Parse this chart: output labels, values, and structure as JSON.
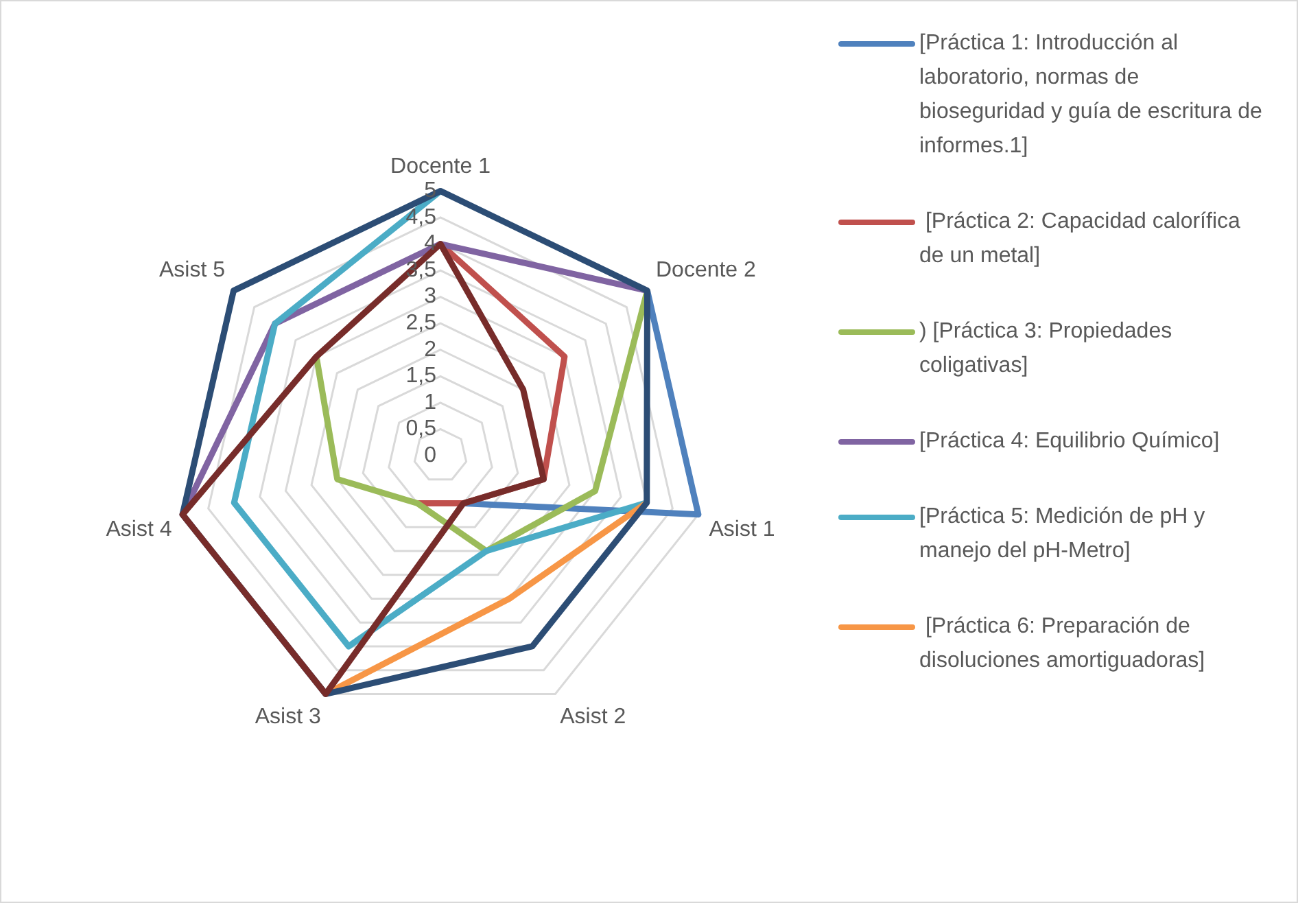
{
  "chart_data": {
    "type": "radar",
    "categories": [
      "Docente 1",
      "Docente 2",
      "Asist 1",
      "Asist 2",
      "Asist 3",
      "Asist 4",
      "Asist 5"
    ],
    "series": [
      {
        "color": "#772c2a",
        "values": [
          4,
          2,
          2,
          1,
          5,
          5,
          3
        ]
      },
      {
        "color": "#2c4d75",
        "values": [
          5,
          5,
          4,
          4,
          5,
          5,
          5
        ]
      },
      {
        "name": " [Práctica 6: Preparación de disoluciones amortiguadoras]",
        "color": "#f79646",
        "values": [
          null,
          null,
          4,
          3,
          5,
          null,
          null
        ]
      },
      {
        "name": "[Práctica 5: Medición de pH y manejo del pH-Metro]",
        "color": "#4bacc6",
        "values": [
          5,
          null,
          4,
          2,
          4,
          4,
          4
        ]
      },
      {
        "name": "[Práctica 4: Equilibrio Químico]",
        "color": "#8064a2",
        "values": [
          4,
          5,
          null,
          null,
          null,
          5,
          4
        ]
      },
      {
        "name": ") [Práctica 3: Propiedades coligativas]",
        "color": "#9bbb59",
        "values": [
          null,
          5,
          3,
          2,
          1,
          2,
          3
        ]
      },
      {
        "name": " [Práctica 2: Capacidad calorífica de un metal]",
        "color": "#c0504d",
        "values": [
          4,
          3,
          2,
          1,
          1,
          null,
          null
        ]
      },
      {
        "name": "[Práctica 1: Introducción al laboratorio, normas de bioseguridad y guía de escritura de informes.1]",
        "color": "#4f81bd",
        "values": [
          null,
          5,
          5,
          1,
          null,
          null,
          null
        ]
      }
    ],
    "ylim": [
      0,
      5
    ],
    "yticks": [
      0,
      {
        "value": 0.5,
        "label": "0,5"
      },
      1,
      {
        "value": 1.5,
        "label": "1,5"
      },
      2,
      {
        "value": 2.5,
        "label": "2,5"
      },
      3,
      {
        "value": 3.5,
        "label": "3,5"
      },
      4,
      {
        "value": 4.5,
        "label": "4,5"
      },
      5
    ],
    "grid": true,
    "legend": "right",
    "marker": "none",
    "line_style": "solid"
  }
}
